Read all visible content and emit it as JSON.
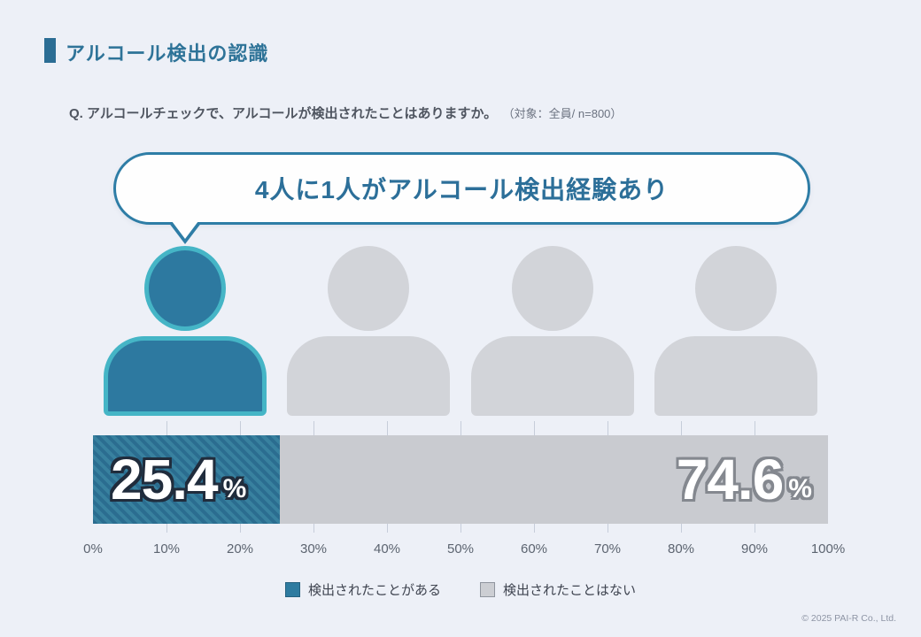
{
  "page": {
    "background": "#edf0f7",
    "copyright": "© 2025 PAI-R Co., Ltd."
  },
  "header": {
    "title": "アルコール検出の認識",
    "accent_color": "#2b6d94"
  },
  "question": {
    "text": "Q. アルコールチェックで、アルコールが検出されたことはありますか。",
    "note": "（対象：全員/ n=800）"
  },
  "callout": {
    "text": "4人に1人がアルコール検出経験あり",
    "border_color": "#2e7da6",
    "text_color": "#2c6f99"
  },
  "figures": {
    "count": 4,
    "highlighted_count": 1,
    "highlight_fill": "#2d79a0",
    "highlight_outline": "#45b5c6",
    "default_fill": "#d2d4d9"
  },
  "chart_data": {
    "type": "bar",
    "orientation": "horizontal",
    "stacked": true,
    "unit": "%",
    "series": [
      {
        "name": "検出されたことがある",
        "value": 25.4,
        "color": "#2f7494",
        "pattern": "diagonal-hatch"
      },
      {
        "name": "検出されたことはない",
        "value": 74.6,
        "color": "#c9cbd0",
        "pattern": "solid"
      }
    ],
    "x_ticks": [
      "0%",
      "10%",
      "20%",
      "30%",
      "40%",
      "50%",
      "60%",
      "70%",
      "80%",
      "90%",
      "100%"
    ],
    "xlim": [
      0,
      100
    ],
    "grid": false,
    "legend_position": "bottom",
    "value_labels": [
      {
        "number": "25.4",
        "suffix": "%"
      },
      {
        "number": "74.6",
        "suffix": "%"
      }
    ]
  },
  "legend": {
    "items": [
      {
        "label": "検出されたことがある",
        "color": "#2e7ba0"
      },
      {
        "label": "検出されたことはない",
        "color": "#ccced3"
      }
    ]
  }
}
